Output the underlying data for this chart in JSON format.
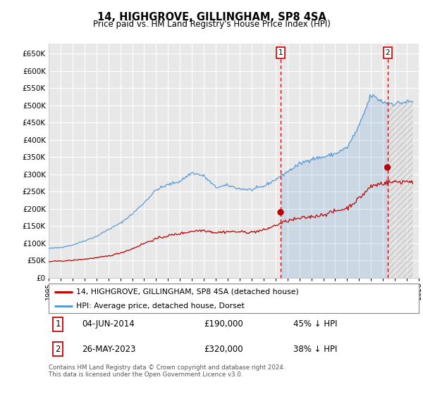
{
  "title": "14, HIGHGROVE, GILLINGHAM, SP8 4SA",
  "subtitle": "Price paid vs. HM Land Registry's House Price Index (HPI)",
  "hpi_label": "HPI: Average price, detached house, Dorset",
  "price_label": "14, HIGHGROVE, GILLINGHAM, SP8 4SA (detached house)",
  "hpi_color": "#5b9bd5",
  "price_color": "#c00000",
  "annotation_color": "#c00000",
  "purchase1_x": 2014.43,
  "purchase1_y": 190000,
  "purchase1_text": "04-JUN-2014",
  "purchase1_pct": "45% ↓ HPI",
  "purchase2_x": 2023.38,
  "purchase2_y": 320000,
  "purchase2_text": "26-MAY-2023",
  "purchase2_pct": "38% ↓ HPI",
  "ylim": [
    0,
    680000
  ],
  "yticks": [
    0,
    50000,
    100000,
    150000,
    200000,
    250000,
    300000,
    350000,
    400000,
    450000,
    500000,
    550000,
    600000,
    650000
  ],
  "background_color": "#ffffff",
  "plot_bg_color": "#e8e8e8",
  "grid_color": "#ffffff",
  "footer": "Contains HM Land Registry data © Crown copyright and database right 2024.\nThis data is licensed under the Open Government Licence v3.0.",
  "xmin": 1995,
  "xmax": 2026
}
